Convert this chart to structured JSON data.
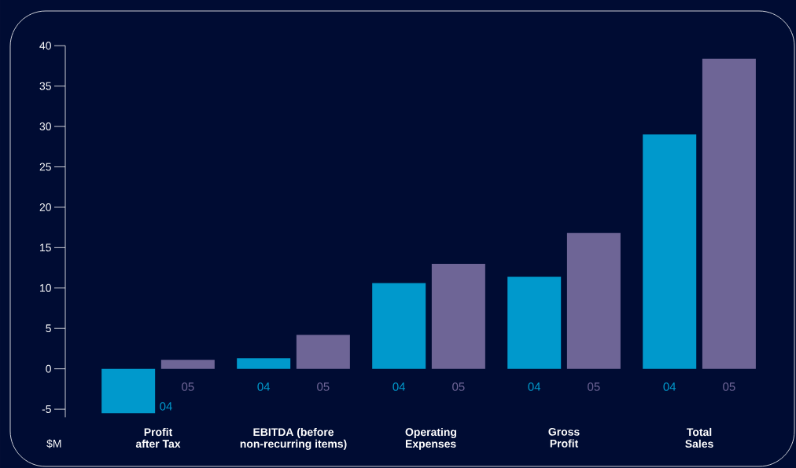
{
  "chart_data": {
    "type": "bar",
    "ylabel": "$M",
    "categories": [
      "Profit after Tax",
      "EBITDA (before non-recurring items)",
      "Operating Expenses",
      "Gross Profit",
      "Total Sales"
    ],
    "series": [
      {
        "name": "04",
        "color": "#0099cc",
        "values": [
          -5.5,
          1.3,
          10.6,
          11.4,
          29.0
        ]
      },
      {
        "name": "05",
        "color": "#6e6596",
        "values": [
          1.1,
          4.2,
          13.0,
          16.8,
          38.4
        ]
      }
    ],
    "ylim": [
      -6,
      40
    ],
    "yticks": [
      -5,
      0,
      5,
      10,
      15,
      20,
      25,
      30,
      35,
      40
    ],
    "grid": false
  }
}
